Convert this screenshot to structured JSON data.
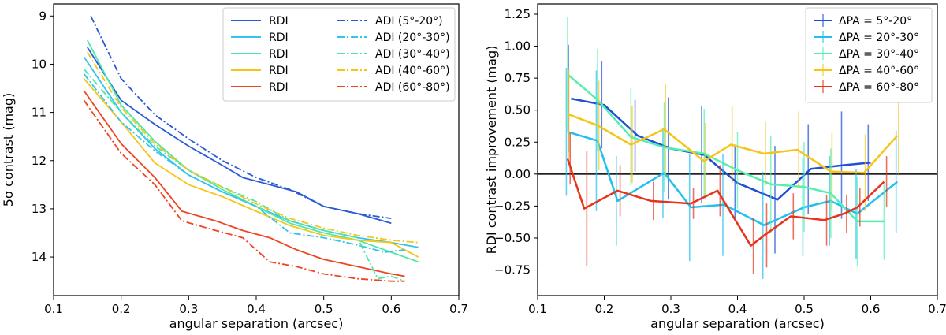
{
  "chart_data": [
    {
      "type": "line",
      "xlabel": "angular separation (arcsec)",
      "ylabel": "5σ contrast (mag)",
      "xlim": [
        0.1,
        0.7
      ],
      "ylim": [
        14.8,
        8.75
      ],
      "y_inverted": true,
      "xticks": [
        "0.1",
        "0.2",
        "0.3",
        "0.4",
        "0.5",
        "0.6",
        "0.7"
      ],
      "yticks": [
        "9",
        "10",
        "11",
        "12",
        "13",
        "14"
      ],
      "legend_position": "top-right",
      "legend_columns": 2,
      "series": [
        {
          "name": "RDI",
          "style": "solid",
          "color": "#2a5bd7",
          "x": [
            0.15,
            0.2,
            0.25,
            0.3,
            0.35,
            0.38,
            0.42,
            0.46,
            0.5,
            0.55,
            0.6
          ],
          "y": [
            9.65,
            10.75,
            11.25,
            11.7,
            12.1,
            12.35,
            12.5,
            12.65,
            12.95,
            13.1,
            13.3
          ]
        },
        {
          "name": "RDI",
          "style": "solid",
          "color": "#33c4ee",
          "x": [
            0.145,
            0.2,
            0.25,
            0.3,
            0.35,
            0.4,
            0.45,
            0.5,
            0.55,
            0.6,
            0.64
          ],
          "y": [
            9.85,
            11.0,
            11.75,
            12.3,
            12.65,
            12.95,
            13.25,
            13.45,
            13.6,
            13.7,
            13.8
          ]
        },
        {
          "name": "RDI",
          "style": "solid",
          "color": "#4de8a6",
          "x": [
            0.15,
            0.2,
            0.25,
            0.3,
            0.35,
            0.4,
            0.45,
            0.5,
            0.55,
            0.6,
            0.64
          ],
          "y": [
            9.5,
            10.85,
            11.6,
            12.2,
            12.6,
            12.95,
            13.3,
            13.5,
            13.65,
            13.9,
            14.1
          ]
        },
        {
          "name": "RDI",
          "style": "solid",
          "color": "#f5c518",
          "x": [
            0.145,
            0.2,
            0.25,
            0.3,
            0.35,
            0.4,
            0.45,
            0.5,
            0.55,
            0.6,
            0.64
          ],
          "y": [
            10.3,
            11.2,
            12.05,
            12.5,
            12.75,
            13.05,
            13.35,
            13.55,
            13.65,
            13.7,
            14.0
          ]
        },
        {
          "name": "RDI",
          "style": "solid",
          "color": "#ee4422",
          "x": [
            0.145,
            0.2,
            0.25,
            0.29,
            0.34,
            0.38,
            0.42,
            0.46,
            0.5,
            0.55,
            0.6,
            0.62
          ],
          "y": [
            10.55,
            11.65,
            12.35,
            13.05,
            13.25,
            13.45,
            13.6,
            13.85,
            14.05,
            14.2,
            14.35,
            14.4
          ]
        },
        {
          "name": "ADI (5°-20°)",
          "style": "dashdot",
          "color": "#2a5bd7",
          "x": [
            0.155,
            0.2,
            0.25,
            0.3,
            0.35,
            0.4,
            0.45,
            0.5,
            0.55,
            0.6
          ],
          "y": [
            9.0,
            10.3,
            11.05,
            11.55,
            12.0,
            12.35,
            12.6,
            12.95,
            13.1,
            13.2
          ]
        },
        {
          "name": "ADI (20°-30°)",
          "style": "dashdot",
          "color": "#33c4ee",
          "x": [
            0.145,
            0.2,
            0.25,
            0.3,
            0.35,
            0.4,
            0.45,
            0.5,
            0.55,
            0.59,
            0.62
          ],
          "y": [
            10.2,
            11.2,
            11.8,
            12.3,
            12.65,
            12.95,
            13.5,
            13.6,
            13.75,
            13.9,
            13.85
          ]
        },
        {
          "name": "ADI (30°-40°)",
          "style": "dashdot",
          "color": "#4de8a6",
          "x": [
            0.145,
            0.2,
            0.25,
            0.3,
            0.35,
            0.4,
            0.45,
            0.5,
            0.55,
            0.58,
            0.6,
            0.62
          ],
          "y": [
            10.1,
            11.0,
            11.7,
            12.2,
            12.55,
            12.85,
            13.25,
            13.45,
            13.6,
            14.45,
            14.4,
            14.5
          ]
        },
        {
          "name": "ADI (40°-60°)",
          "style": "dashdot",
          "color": "#f5c518",
          "x": [
            0.15,
            0.2,
            0.25,
            0.3,
            0.35,
            0.4,
            0.45,
            0.5,
            0.55,
            0.6,
            0.64
          ],
          "y": [
            9.75,
            10.9,
            11.65,
            12.2,
            12.55,
            12.9,
            13.2,
            13.4,
            13.55,
            13.65,
            13.7
          ]
        },
        {
          "name": "ADI (60°-80°)",
          "style": "dashdot",
          "color": "#ee4422",
          "x": [
            0.145,
            0.2,
            0.25,
            0.29,
            0.34,
            0.38,
            0.42,
            0.46,
            0.5,
            0.55,
            0.6,
            0.62
          ],
          "y": [
            10.75,
            11.85,
            12.5,
            13.25,
            13.45,
            13.6,
            14.1,
            14.2,
            14.35,
            14.45,
            14.5,
            14.5
          ]
        }
      ]
    },
    {
      "type": "line",
      "xlabel": "angular separation (arcsec)",
      "ylabel": "RDI contrast improvement (mag)",
      "xlim": [
        0.1,
        0.7
      ],
      "ylim": [
        -0.95,
        1.33
      ],
      "xticks": [
        "0.1",
        "0.2",
        "0.3",
        "0.4",
        "0.5",
        "0.6",
        "0.7"
      ],
      "yticks": [
        "−0.75",
        "−0.50",
        "−0.25",
        "0.00",
        "0.25",
        "0.50",
        "0.75",
        "1.00",
        "1.25"
      ],
      "hline": 0,
      "legend_position": "top-right",
      "series": [
        {
          "name": "ΔPA = 5°-20°",
          "color": "#1f4fd8",
          "x": [
            0.15,
            0.2,
            0.25,
            0.3,
            0.35,
            0.4,
            0.46,
            0.51,
            0.56,
            0.6
          ],
          "y": [
            0.59,
            0.54,
            0.3,
            0.2,
            0.15,
            -0.07,
            -0.2,
            0.04,
            0.07,
            0.09
          ],
          "err": [
            0.42,
            0.34,
            0.28,
            0.4,
            0.38,
            0.3,
            0.42,
            0.35,
            0.42,
            0.3
          ]
        },
        {
          "name": "ΔPA = 20°-30°",
          "color": "#22bff0",
          "x": [
            0.145,
            0.19,
            0.22,
            0.29,
            0.33,
            0.38,
            0.44,
            0.5,
            0.54,
            0.58,
            0.64
          ],
          "y": [
            0.33,
            0.26,
            -0.21,
            0.01,
            -0.26,
            -0.24,
            -0.4,
            -0.26,
            -0.21,
            -0.31,
            -0.06
          ],
          "err": [
            0.5,
            0.55,
            0.35,
            0.35,
            0.42,
            0.4,
            0.42,
            0.38,
            0.35,
            0.35,
            0.4
          ]
        },
        {
          "name": "ΔPA = 30°-40°",
          "color": "#55f0b0",
          "x": [
            0.145,
            0.19,
            0.24,
            0.29,
            0.35,
            0.4,
            0.45,
            0.5,
            0.54,
            0.58,
            0.62
          ],
          "y": [
            0.78,
            0.58,
            0.29,
            0.21,
            0.16,
            0.03,
            -0.08,
            -0.1,
            -0.15,
            -0.37,
            -0.37
          ],
          "err": [
            0.45,
            0.4,
            0.38,
            0.35,
            0.35,
            0.3,
            0.38,
            0.35,
            0.35,
            0.35,
            0.3
          ]
        },
        {
          "name": "ΔPA = 40°-60°",
          "color": "#f5c518",
          "x": [
            0.145,
            0.19,
            0.24,
            0.29,
            0.35,
            0.39,
            0.44,
            0.49,
            0.54,
            0.59,
            0.64
          ],
          "y": [
            0.47,
            0.38,
            0.23,
            0.35,
            0.1,
            0.23,
            0.16,
            0.19,
            0.02,
            0.01,
            0.3
          ],
          "err": [
            0.35,
            0.35,
            0.3,
            0.35,
            0.3,
            0.3,
            0.25,
            0.3,
            0.3,
            0.3,
            0.3
          ]
        },
        {
          "name": "ΔPA = 60°-80°",
          "color": "#e8321a",
          "x": [
            0.145,
            0.17,
            0.22,
            0.27,
            0.33,
            0.37,
            0.42,
            0.44,
            0.48,
            0.53,
            0.56,
            0.58,
            0.62
          ],
          "y": [
            0.12,
            -0.27,
            -0.13,
            -0.21,
            -0.23,
            -0.13,
            -0.56,
            -0.48,
            -0.33,
            -0.36,
            -0.31,
            -0.26,
            -0.06
          ],
          "err": [
            0.2,
            0.45,
            0.2,
            0.15,
            0.12,
            0.2,
            0.22,
            0.25,
            0.18,
            0.2,
            0.15,
            0.15,
            0.2
          ]
        }
      ]
    }
  ]
}
